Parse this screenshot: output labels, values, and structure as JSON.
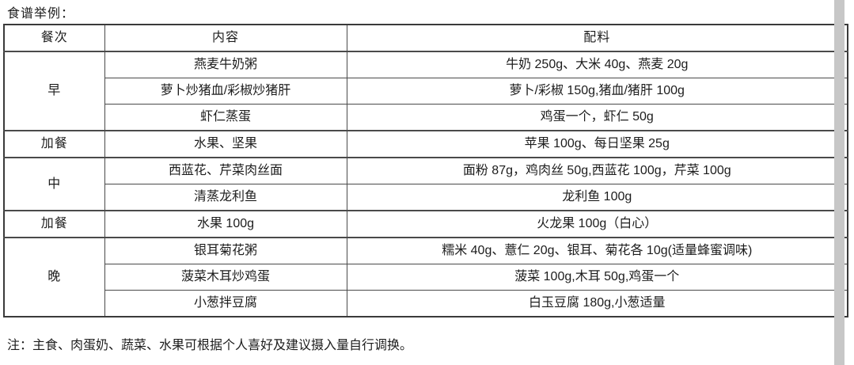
{
  "page": {
    "title": "食谱举例：",
    "note": "注：主食、肉蛋奶、蔬菜、水果可根据个人喜好及建议摄入量自行调换。"
  },
  "table": {
    "headers": [
      "餐次",
      "内容",
      "配料"
    ],
    "groups": [
      {
        "meal": "早",
        "rows": [
          {
            "content": "燕麦牛奶粥",
            "ingredients": "牛奶 250g、大米 40g、燕麦 20g"
          },
          {
            "content": "萝卜炒猪血/彩椒炒猪肝",
            "ingredients": "萝卜/彩椒 150g,猪血/猪肝 100g"
          },
          {
            "content": "虾仁蒸蛋",
            "ingredients": "鸡蛋一个，虾仁 50g"
          }
        ]
      },
      {
        "meal": "加餐",
        "rows": [
          {
            "content": "水果、坚果",
            "ingredients": "苹果 100g、每日坚果 25g"
          }
        ]
      },
      {
        "meal": "中",
        "rows": [
          {
            "content": "西蓝花、芹菜肉丝面",
            "ingredients": "面粉 87g，鸡肉丝 50g,西蓝花 100g，芹菜 100g"
          },
          {
            "content": "清蒸龙利鱼",
            "ingredients": "龙利鱼 100g"
          }
        ]
      },
      {
        "meal": "加餐",
        "rows": [
          {
            "content": "水果 100g",
            "ingredients": "火龙果 100g（白心）"
          }
        ]
      },
      {
        "meal": "晚",
        "rows": [
          {
            "content": "银耳菊花粥",
            "ingredients": "糯米 40g、薏仁 20g、银耳、菊花各 10g(适量蜂蜜调味)"
          },
          {
            "content": "菠菜木耳炒鸡蛋",
            "ingredients": "菠菜 100g,木耳 50g,鸡蛋一个"
          },
          {
            "content": "小葱拌豆腐",
            "ingredients": "白玉豆腐 180g,小葱适量"
          }
        ]
      }
    ]
  },
  "colors": {
    "background": "#ffffff",
    "text": "#1c1c1c",
    "border_inner": "#4a4a4a",
    "border_outer": "#3a3a3a",
    "scrollbar": "#c7c7c7"
  }
}
